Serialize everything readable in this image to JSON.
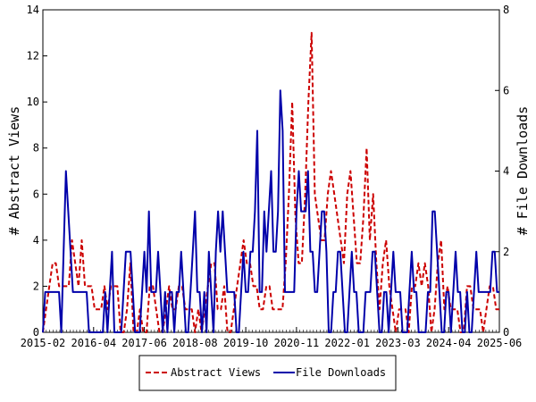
{
  "chart_data": {
    "type": "line",
    "xlabel": "",
    "ylabel_left": "# Abstract Views",
    "ylabel_right": "# File Downloads",
    "x_tick_labels": [
      "2015-02",
      "2016-04",
      "2017-06",
      "2018-08",
      "2019-10",
      "2020-11",
      "2022-01",
      "2023-03",
      "2024-04",
      "2025-06"
    ],
    "ylim_left": [
      0,
      14
    ],
    "ylim_right": [
      0,
      8
    ],
    "y_ticks_left": [
      0,
      2,
      4,
      6,
      8,
      10,
      12,
      14
    ],
    "y_ticks_right": [
      0,
      2,
      4,
      6,
      8
    ],
    "grid": false,
    "legend_position": "bottom-center",
    "colors": {
      "views": "#cc0000",
      "downloads": "#0000aa"
    },
    "series": [
      {
        "name": "Abstract Views",
        "axis": "left",
        "style": "dashed",
        "values": [
          0,
          1,
          2,
          3,
          3,
          2,
          2,
          2,
          2,
          4,
          3,
          2,
          4,
          2,
          2,
          2,
          1,
          1,
          1,
          2,
          1,
          2,
          2,
          2,
          0,
          0,
          1,
          3,
          0,
          0,
          1,
          0,
          0,
          2,
          2,
          1,
          0,
          0,
          1,
          2,
          1,
          1,
          2,
          2,
          1,
          1,
          1,
          0,
          1,
          0,
          1,
          2,
          3,
          3,
          1,
          1,
          2,
          0,
          0,
          1,
          2,
          3,
          4,
          3,
          3,
          2,
          2,
          1,
          1,
          2,
          2,
          1,
          1,
          1,
          1,
          3,
          6,
          10,
          5,
          3,
          3,
          6,
          10,
          13,
          6,
          5,
          4,
          4,
          6,
          7,
          6,
          5,
          4,
          3,
          6,
          7,
          5,
          3,
          3,
          5,
          8,
          4,
          6,
          3,
          1,
          3,
          4,
          2,
          1,
          0,
          1,
          1,
          1,
          0,
          2,
          2,
          3,
          2,
          3,
          2,
          0,
          1,
          3,
          4,
          1,
          2,
          1,
          1,
          1,
          0,
          0,
          2,
          2,
          1,
          1,
          1,
          0,
          1,
          2,
          2,
          1,
          1
        ]
      },
      {
        "name": "File Downloads",
        "axis": "right",
        "values": [
          0,
          1,
          1,
          1,
          1,
          1,
          1,
          1,
          0,
          2,
          4,
          3,
          2,
          1,
          1,
          1,
          1,
          1,
          1,
          1,
          0,
          0,
          0,
          0,
          0,
          0,
          0,
          1,
          0,
          1,
          2,
          0,
          0,
          0,
          0,
          1,
          2,
          2,
          2,
          1,
          0,
          0,
          0,
          1,
          2,
          1,
          3,
          1,
          1,
          1,
          2,
          1,
          0,
          1,
          0,
          1,
          1,
          0,
          1,
          1,
          2,
          1,
          0,
          0,
          1,
          2,
          3,
          1,
          1,
          0,
          1,
          0,
          2,
          1,
          0,
          2,
          3,
          2,
          3,
          2,
          1,
          1,
          1,
          1,
          0,
          0,
          1,
          2,
          1,
          1,
          2,
          2,
          3,
          5,
          1,
          1,
          3,
          2,
          3,
          4,
          2,
          2,
          3,
          6,
          5,
          1,
          1,
          1,
          1,
          1,
          3,
          4,
          3,
          3,
          3,
          4,
          2,
          2,
          1,
          1,
          2,
          3,
          3,
          2,
          0,
          0,
          1,
          1,
          2,
          2,
          1,
          0,
          0,
          1,
          2,
          1,
          1,
          0,
          0,
          0,
          1,
          1,
          1,
          2,
          2,
          1,
          0,
          0,
          1,
          1,
          0,
          1,
          2,
          1,
          1,
          1,
          0,
          0,
          0,
          1,
          2,
          1,
          1,
          0,
          0,
          0,
          0,
          1,
          1,
          3,
          3,
          2,
          1,
          0,
          0,
          1,
          1,
          0,
          1,
          2,
          1,
          1,
          0,
          0,
          1,
          0,
          0,
          1,
          2,
          1,
          1,
          1,
          1,
          1,
          1,
          2,
          2,
          1,
          1
        ]
      }
    ]
  },
  "legend": {
    "views_label": "Abstract Views",
    "downloads_label": "File Downloads"
  }
}
